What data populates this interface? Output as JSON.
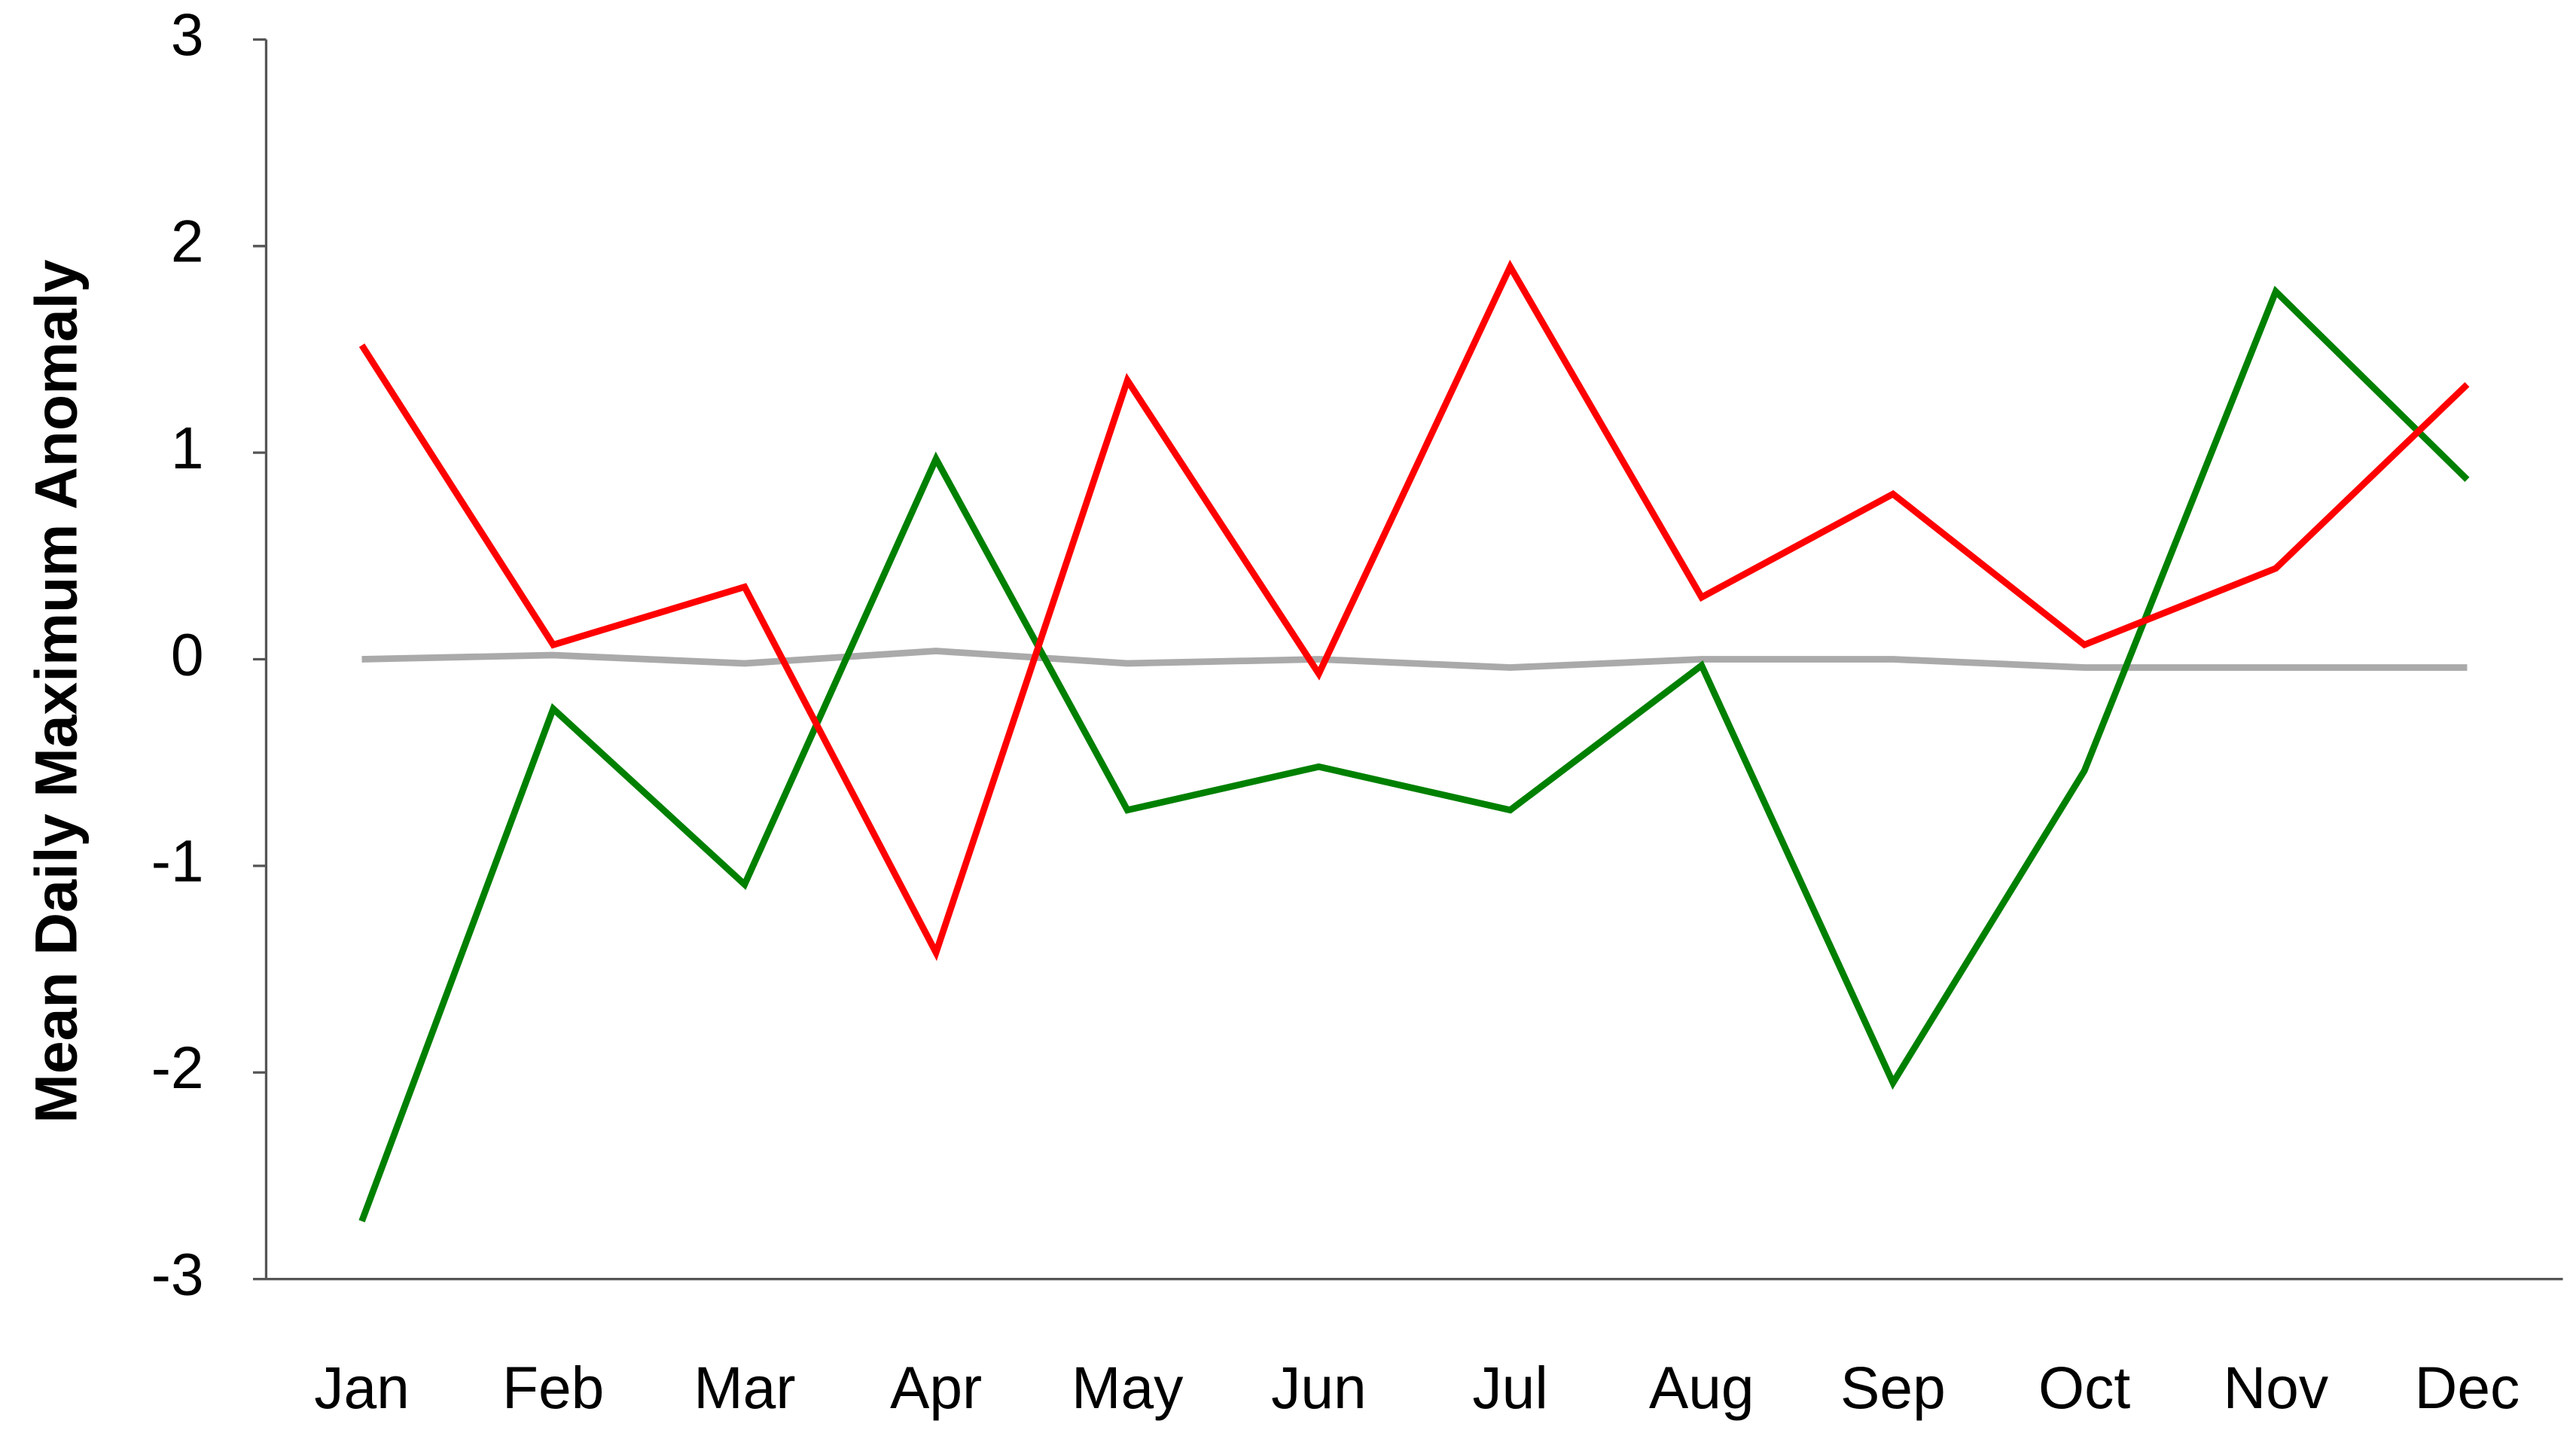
{
  "chart_data": {
    "type": "line",
    "y_label": "Mean Daily Maximum Anomaly",
    "categories": [
      "Jan",
      "Feb",
      "Mar",
      "Apr",
      "May",
      "Jun",
      "Jul",
      "Aug",
      "Sep",
      "Oct",
      "Nov",
      "Dec"
    ],
    "series": [
      {
        "color": "#aaaaaa",
        "values": [
          0,
          0.02,
          -0.02,
          0.04,
          -0.02,
          0,
          -0.04,
          0,
          0,
          -0.04,
          -0.04,
          -0.04
        ]
      },
      {
        "color": "#008000",
        "values": [
          -2.72,
          -0.24,
          -1.09,
          0.97,
          -0.73,
          -0.52,
          -0.73,
          -0.03,
          -2.05,
          -0.54,
          1.78,
          0.87
        ]
      },
      {
        "color": "#ff0000",
        "values": [
          1.52,
          0.07,
          0.35,
          -1.42,
          1.35,
          -0.07,
          1.9,
          0.3,
          0.8,
          0.07,
          0.44,
          1.33
        ]
      }
    ],
    "ylim": [
      -3,
      3
    ],
    "yticks": [
      -3,
      -2,
      -1,
      0,
      1,
      2,
      3
    ],
    "grid": false
  }
}
